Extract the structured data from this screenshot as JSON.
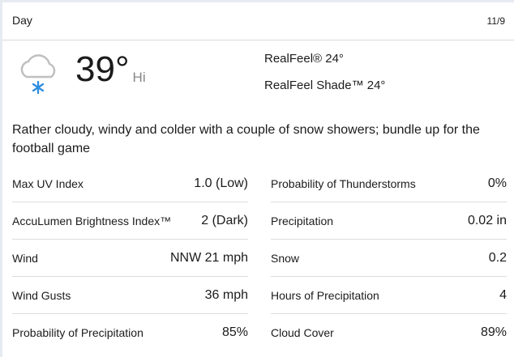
{
  "header": {
    "title": "Day",
    "date": "11/9"
  },
  "current": {
    "icon": "cloud-snow-icon",
    "temperature": "39°",
    "label": "Hi",
    "realfeel": "RealFeel® 24°",
    "realfeel_shade": "RealFeel Shade™ 24°"
  },
  "description": "Rather cloudy, windy and colder with a couple of snow showers; bundle up for the football game",
  "details_left": [
    {
      "label": "Max UV Index",
      "value": "1.0 (Low)"
    },
    {
      "label": "AccuLumen Brightness Index™",
      "value": "2 (Dark)"
    },
    {
      "label": "Wind",
      "value": "NNW 21 mph"
    },
    {
      "label": "Wind Gusts",
      "value": "36 mph"
    },
    {
      "label": "Probability of Precipitation",
      "value": "85%"
    }
  ],
  "details_right": [
    {
      "label": "Probability of Thunderstorms",
      "value": "0%"
    },
    {
      "label": "Precipitation",
      "value": "0.02 in"
    },
    {
      "label": "Snow",
      "value": "0.2"
    },
    {
      "label": "Hours of Precipitation",
      "value": "4"
    },
    {
      "label": "Cloud Cover",
      "value": "89%"
    }
  ],
  "colors": {
    "snowflake": "#2e8de0",
    "cloud": "#bfbfbf"
  }
}
